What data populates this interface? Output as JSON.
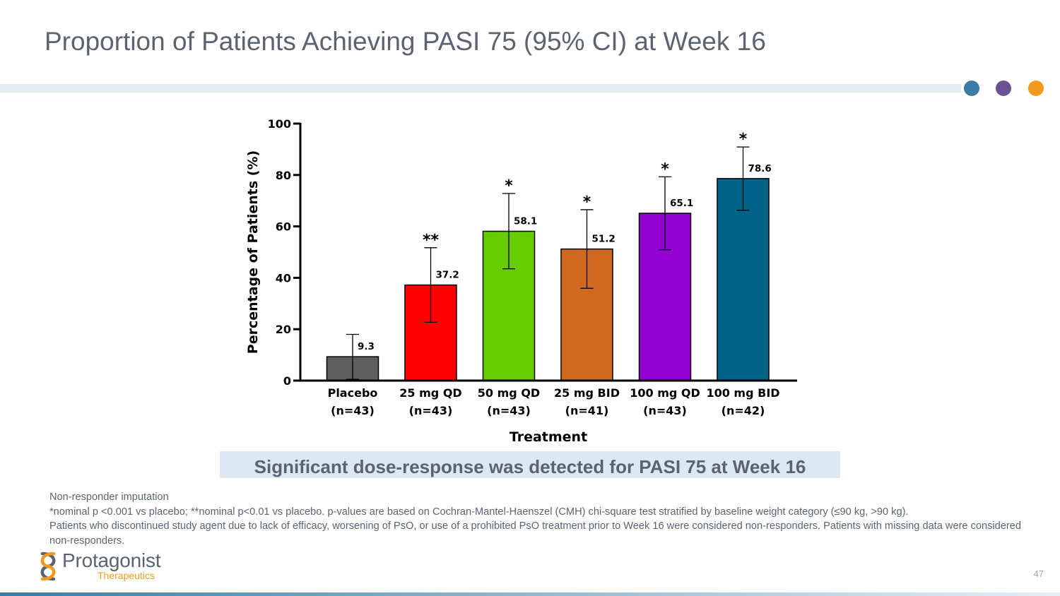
{
  "slide": {
    "title": "Proportion of Patients Achieving PASI 75 (95% CI) at Week 16",
    "callout": "Significant dose-response was detected for PASI 75 at Week 16",
    "footnotes": [
      "Non-responder imputation",
      "*nominal p <0.001 vs placebo; **nominal p<0.01 vs placebo. p-values are based on Cochran-Mantel-Haenszel (CMH) chi-square test stratified by baseline weight category (≤90 kg, >90 kg).",
      "Patients who discontinued study agent due to lack of efficacy, worsening of PsO, or use of a prohibited PsO treatment prior to Week 16 were considered non-responders. Patients with missing data were considered non-responders."
    ],
    "page_number": "47",
    "dot_colors": [
      "#3a7ca5",
      "#6b5294",
      "#f39a1e"
    ]
  },
  "logo": {
    "name": "Protagonist",
    "subtitle": "Therapeutics",
    "mark_colors": [
      "#5a6470",
      "#f39a1e"
    ]
  },
  "chart_data": {
    "type": "bar",
    "title": "",
    "xlabel": "Treatment",
    "ylabel": "Percentage of Patients (%)",
    "ylim": [
      0,
      100
    ],
    "yticks": [
      0,
      20,
      40,
      60,
      80,
      100
    ],
    "grid": false,
    "categories": [
      {
        "line1": "Placebo",
        "line2": "(n=43)"
      },
      {
        "line1": "25 mg QD",
        "line2": "(n=43)"
      },
      {
        "line1": "50 mg QD",
        "line2": "(n=43)"
      },
      {
        "line1": "25 mg BID",
        "line2": "(n=41)"
      },
      {
        "line1": "100 mg QD",
        "line2": "(n=43)"
      },
      {
        "line1": "100 mg BID",
        "line2": "(n=42)"
      }
    ],
    "values": [
      9.3,
      37.2,
      58.1,
      51.2,
      65.1,
      78.6
    ],
    "value_labels": [
      "9.3",
      "37.2",
      "58.1",
      "51.2",
      "65.1",
      "78.6"
    ],
    "ci_low": [
      0.5,
      22.7,
      43.5,
      35.9,
      50.9,
      66.3
    ],
    "ci_high": [
      18.0,
      51.7,
      72.8,
      66.5,
      79.3,
      90.9
    ],
    "significance": [
      "",
      "**",
      "*",
      "*",
      "*",
      "*"
    ],
    "colors": [
      "#5f5f5f",
      "#ff0000",
      "#66cc00",
      "#d2691e",
      "#9400d3",
      "#006289"
    ]
  }
}
